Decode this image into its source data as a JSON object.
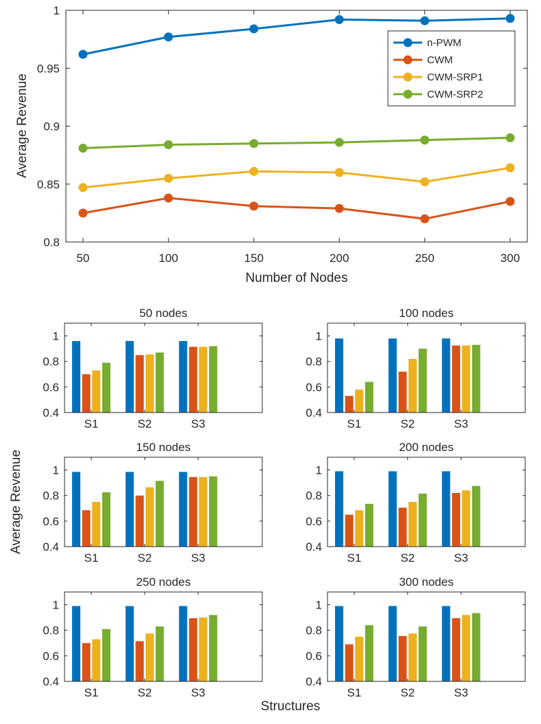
{
  "chart_data": [
    {
      "type": "line",
      "xlabel": "Number of Nodes",
      "ylabel": "Average Revenue",
      "x": [
        50,
        100,
        150,
        200,
        250,
        300
      ],
      "xticks": [
        "50",
        "100",
        "150",
        "200",
        "250",
        "300"
      ],
      "xlim": [
        40,
        310
      ],
      "ylim": [
        0.8,
        1.0
      ],
      "yticks": [
        "0.8",
        "0.85",
        "0.9",
        "0.95",
        "1"
      ],
      "ytick_values": [
        0.8,
        0.85,
        0.9,
        0.95,
        1.0
      ],
      "legend_position": "top-right",
      "series": [
        {
          "name": "n-PWM",
          "color": "#0072BD",
          "values": [
            0.962,
            0.977,
            0.984,
            0.992,
            0.991,
            0.993
          ]
        },
        {
          "name": "CWM",
          "color": "#D95319",
          "values": [
            0.825,
            0.838,
            0.831,
            0.829,
            0.82,
            0.835
          ]
        },
        {
          "name": "CWM-SRP1",
          "color": "#EDB120",
          "values": [
            0.847,
            0.855,
            0.861,
            0.86,
            0.852,
            0.864
          ]
        },
        {
          "name": "CWM-SRP2",
          "color": "#77AC30",
          "values": [
            0.881,
            0.884,
            0.885,
            0.886,
            0.888,
            0.89
          ]
        }
      ]
    },
    {
      "type": "bar",
      "title": "50 nodes",
      "categories": [
        "S1",
        "S2",
        "S3"
      ],
      "ylim": [
        0.4,
        1.1
      ],
      "yticks": [
        "0.4",
        "0.6",
        "0.8",
        "1"
      ],
      "ytick_values": [
        0.4,
        0.6,
        0.8,
        1.0
      ],
      "series": [
        {
          "name": "n-PWM",
          "color": "#0072BD",
          "values": [
            0.96,
            0.96,
            0.96
          ]
        },
        {
          "name": "CWM",
          "color": "#D95319",
          "values": [
            0.7,
            0.85,
            0.915
          ]
        },
        {
          "name": "CWM-SRP1",
          "color": "#EDB120",
          "values": [
            0.73,
            0.855,
            0.915
          ]
        },
        {
          "name": "CWM-SRP2",
          "color": "#77AC30",
          "values": [
            0.79,
            0.87,
            0.92
          ]
        }
      ]
    },
    {
      "type": "bar",
      "title": "100 nodes",
      "categories": [
        "S1",
        "S2",
        "S3"
      ],
      "ylim": [
        0.4,
        1.1
      ],
      "yticks": [
        "0.4",
        "0.6",
        "0.8",
        "1"
      ],
      "ytick_values": [
        0.4,
        0.6,
        0.8,
        1.0
      ],
      "series": [
        {
          "name": "n-PWM",
          "color": "#0072BD",
          "values": [
            0.98,
            0.98,
            0.98
          ]
        },
        {
          "name": "CWM",
          "color": "#D95319",
          "values": [
            0.53,
            0.72,
            0.925
          ]
        },
        {
          "name": "CWM-SRP1",
          "color": "#EDB120",
          "values": [
            0.58,
            0.82,
            0.925
          ]
        },
        {
          "name": "CWM-SRP2",
          "color": "#77AC30",
          "values": [
            0.64,
            0.9,
            0.93
          ]
        }
      ]
    },
    {
      "type": "bar",
      "title": "150 nodes",
      "categories": [
        "S1",
        "S2",
        "S3"
      ],
      "ylim": [
        0.4,
        1.1
      ],
      "yticks": [
        "0.4",
        "0.6",
        "0.8",
        "1"
      ],
      "ytick_values": [
        0.4,
        0.6,
        0.8,
        1.0
      ],
      "series": [
        {
          "name": "n-PWM",
          "color": "#0072BD",
          "values": [
            0.985,
            0.985,
            0.985
          ]
        },
        {
          "name": "CWM",
          "color": "#D95319",
          "values": [
            0.685,
            0.8,
            0.945
          ]
        },
        {
          "name": "CWM-SRP1",
          "color": "#EDB120",
          "values": [
            0.75,
            0.865,
            0.945
          ]
        },
        {
          "name": "CWM-SRP2",
          "color": "#77AC30",
          "values": [
            0.825,
            0.915,
            0.95
          ]
        }
      ]
    },
    {
      "type": "bar",
      "title": "200 nodes",
      "categories": [
        "S1",
        "S2",
        "S3"
      ],
      "ylim": [
        0.4,
        1.1
      ],
      "yticks": [
        "0.4",
        "0.6",
        "0.8",
        "1"
      ],
      "ytick_values": [
        0.4,
        0.6,
        0.8,
        1.0
      ],
      "series": [
        {
          "name": "n-PWM",
          "color": "#0072BD",
          "values": [
            0.99,
            0.99,
            0.99
          ]
        },
        {
          "name": "CWM",
          "color": "#D95319",
          "values": [
            0.65,
            0.705,
            0.82
          ]
        },
        {
          "name": "CWM-SRP1",
          "color": "#EDB120",
          "values": [
            0.685,
            0.75,
            0.84
          ]
        },
        {
          "name": "CWM-SRP2",
          "color": "#77AC30",
          "values": [
            0.735,
            0.815,
            0.875
          ]
        }
      ]
    },
    {
      "type": "bar",
      "title": "250 nodes",
      "categories": [
        "S1",
        "S2",
        "S3"
      ],
      "ylim": [
        0.4,
        1.1
      ],
      "yticks": [
        "0.4",
        "0.6",
        "0.8",
        "1"
      ],
      "ytick_values": [
        0.4,
        0.6,
        0.8,
        1.0
      ],
      "series": [
        {
          "name": "n-PWM",
          "color": "#0072BD",
          "values": [
            0.99,
            0.99,
            0.99
          ]
        },
        {
          "name": "CWM",
          "color": "#D95319",
          "values": [
            0.7,
            0.715,
            0.895
          ]
        },
        {
          "name": "CWM-SRP1",
          "color": "#EDB120",
          "values": [
            0.73,
            0.775,
            0.9
          ]
        },
        {
          "name": "CWM-SRP2",
          "color": "#77AC30",
          "values": [
            0.81,
            0.83,
            0.92
          ]
        }
      ]
    },
    {
      "type": "bar",
      "title": "300 nodes",
      "categories": [
        "S1",
        "S2",
        "S3"
      ],
      "ylim": [
        0.4,
        1.1
      ],
      "yticks": [
        "0.4",
        "0.6",
        "0.8",
        "1"
      ],
      "ytick_values": [
        0.4,
        0.6,
        0.8,
        1.0
      ],
      "series": [
        {
          "name": "n-PWM",
          "color": "#0072BD",
          "values": [
            0.99,
            0.99,
            0.99
          ]
        },
        {
          "name": "CWM",
          "color": "#D95319",
          "values": [
            0.69,
            0.755,
            0.895
          ]
        },
        {
          "name": "CWM-SRP1",
          "color": "#EDB120",
          "values": [
            0.75,
            0.775,
            0.92
          ]
        },
        {
          "name": "CWM-SRP2",
          "color": "#77AC30",
          "values": [
            0.84,
            0.83,
            0.935
          ]
        }
      ]
    }
  ],
  "bar_figure": {
    "ylabel": "Average Revenue",
    "xlabel": "Structures"
  }
}
